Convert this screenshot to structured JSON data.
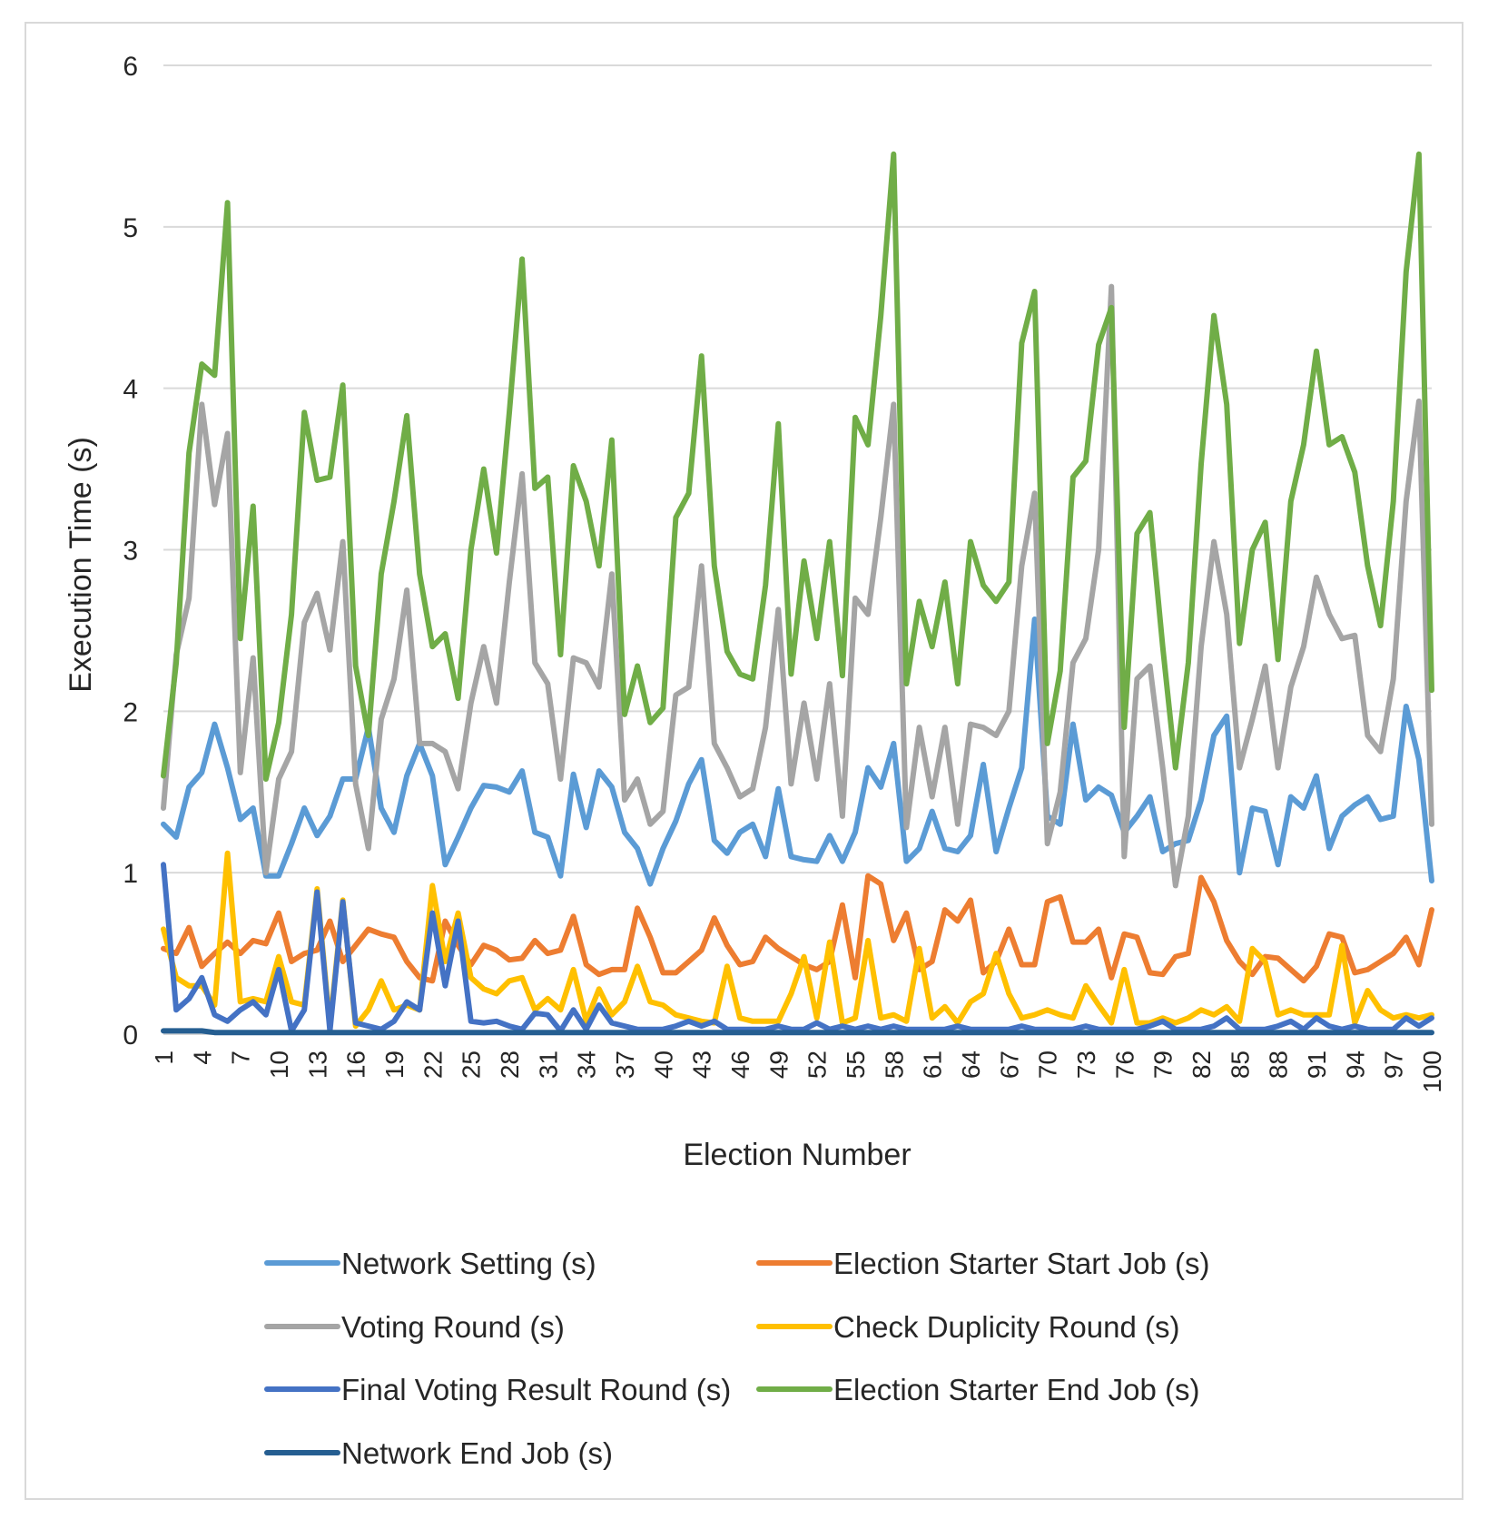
{
  "chart_data": {
    "type": "line",
    "title": "",
    "xlabel": "Election Number",
    "ylabel": "Execution Time (s)",
    "ylim": [
      0,
      6
    ],
    "yticks": [
      0,
      1,
      2,
      3,
      4,
      5,
      6
    ],
    "xtick_labels": [
      "1",
      "4",
      "7",
      "10",
      "13",
      "16",
      "19",
      "22",
      "25",
      "28",
      "31",
      "34",
      "37",
      "40",
      "43",
      "46",
      "49",
      "52",
      "55",
      "58",
      "61",
      "64",
      "67",
      "70",
      "73",
      "76",
      "79",
      "82",
      "85",
      "88",
      "91",
      "94",
      "97",
      "100"
    ],
    "x": [
      1,
      2,
      3,
      4,
      5,
      6,
      7,
      8,
      9,
      10,
      11,
      12,
      13,
      14,
      15,
      16,
      17,
      18,
      19,
      20,
      21,
      22,
      23,
      24,
      25,
      26,
      27,
      28,
      29,
      30,
      31,
      32,
      33,
      34,
      35,
      36,
      37,
      38,
      39,
      40,
      41,
      42,
      43,
      44,
      45,
      46,
      47,
      48,
      49,
      50,
      51,
      52,
      53,
      54,
      55,
      56,
      57,
      58,
      59,
      60,
      61,
      62,
      63,
      64,
      65,
      66,
      67,
      68,
      69,
      70,
      71,
      72,
      73,
      74,
      75,
      76,
      77,
      78,
      79,
      80,
      81,
      82,
      83,
      84,
      85,
      86,
      87,
      88,
      89,
      90,
      91,
      92,
      93,
      94,
      95,
      96,
      97,
      98,
      99,
      100
    ],
    "grid": true,
    "legend_position": "bottom",
    "series": [
      {
        "name": "Network Setting (s)",
        "color": "#5b9bd5",
        "values": [
          1.3,
          1.22,
          1.53,
          1.62,
          1.92,
          1.65,
          1.33,
          1.4,
          0.98,
          0.98,
          1.18,
          1.4,
          1.23,
          1.35,
          1.58,
          1.58,
          1.9,
          1.4,
          1.25,
          1.6,
          1.8,
          1.6,
          1.05,
          1.22,
          1.4,
          1.54,
          1.53,
          1.5,
          1.63,
          1.25,
          1.22,
          0.98,
          1.61,
          1.28,
          1.63,
          1.53,
          1.25,
          1.15,
          0.93,
          1.15,
          1.32,
          1.55,
          1.7,
          1.2,
          1.12,
          1.25,
          1.3,
          1.1,
          1.52,
          1.1,
          1.08,
          1.07,
          1.23,
          1.07,
          1.25,
          1.65,
          1.53,
          1.8,
          1.07,
          1.15,
          1.38,
          1.15,
          1.13,
          1.23,
          1.67,
          1.13,
          1.4,
          1.65,
          2.57,
          1.35,
          1.3,
          1.92,
          1.45,
          1.53,
          1.48,
          1.25,
          1.35,
          1.47,
          1.13,
          1.18,
          1.2,
          1.45,
          1.85,
          1.97,
          1.0,
          1.4,
          1.38,
          1.05,
          1.47,
          1.4,
          1.6,
          1.15,
          1.35,
          1.42,
          1.47,
          1.33,
          1.35,
          2.03,
          1.7,
          0.95
        ]
      },
      {
        "name": "Election Starter Start Job (s)",
        "color": "#ed7d31",
        "values": [
          0.53,
          0.5,
          0.66,
          0.42,
          0.5,
          0.57,
          0.5,
          0.58,
          0.56,
          0.75,
          0.45,
          0.5,
          0.52,
          0.7,
          0.45,
          0.55,
          0.65,
          0.62,
          0.6,
          0.45,
          0.35,
          0.33,
          0.7,
          0.55,
          0.43,
          0.55,
          0.52,
          0.46,
          0.47,
          0.58,
          0.5,
          0.52,
          0.73,
          0.43,
          0.37,
          0.4,
          0.4,
          0.78,
          0.6,
          0.38,
          0.38,
          0.45,
          0.52,
          0.72,
          0.55,
          0.43,
          0.45,
          0.6,
          0.53,
          0.48,
          0.43,
          0.4,
          0.45,
          0.8,
          0.35,
          0.98,
          0.93,
          0.58,
          0.75,
          0.4,
          0.45,
          0.77,
          0.7,
          0.83,
          0.38,
          0.45,
          0.65,
          0.43,
          0.43,
          0.82,
          0.85,
          0.57,
          0.57,
          0.65,
          0.35,
          0.62,
          0.6,
          0.38,
          0.37,
          0.48,
          0.5,
          0.97,
          0.82,
          0.58,
          0.45,
          0.37,
          0.48,
          0.47,
          0.4,
          0.33,
          0.42,
          0.62,
          0.6,
          0.38,
          0.4,
          0.45,
          0.5,
          0.6,
          0.43,
          0.77
        ]
      },
      {
        "name": "Voting Round (s)",
        "color": "#a5a5a5",
        "values": [
          1.4,
          2.35,
          2.7,
          3.9,
          3.28,
          3.72,
          1.62,
          2.33,
          1.0,
          1.58,
          1.75,
          2.55,
          2.73,
          2.38,
          3.05,
          1.55,
          1.15,
          1.95,
          2.2,
          2.75,
          1.8,
          1.8,
          1.75,
          1.52,
          2.05,
          2.4,
          2.05,
          2.8,
          3.47,
          2.3,
          2.17,
          1.58,
          2.33,
          2.3,
          2.15,
          2.85,
          1.45,
          1.58,
          1.3,
          1.38,
          2.1,
          2.15,
          2.9,
          1.8,
          1.65,
          1.47,
          1.52,
          1.9,
          2.63,
          1.55,
          2.05,
          1.58,
          2.17,
          1.35,
          2.7,
          2.6,
          3.2,
          3.9,
          1.28,
          1.9,
          1.47,
          1.9,
          1.3,
          1.92,
          1.9,
          1.85,
          2.0,
          2.9,
          3.35,
          1.18,
          1.5,
          2.3,
          2.45,
          3.0,
          4.63,
          1.1,
          2.2,
          2.28,
          1.65,
          0.92,
          1.35,
          2.4,
          3.05,
          2.6,
          1.65,
          1.95,
          2.28,
          1.65,
          2.15,
          2.4,
          2.83,
          2.6,
          2.45,
          2.47,
          1.85,
          1.75,
          2.2,
          3.3,
          3.92,
          1.3
        ]
      },
      {
        "name": "Check Duplicity Round (s)",
        "color": "#ffc000",
        "values": [
          0.65,
          0.35,
          0.3,
          0.3,
          0.18,
          1.12,
          0.2,
          0.22,
          0.2,
          0.48,
          0.2,
          0.18,
          0.9,
          0.05,
          0.83,
          0.05,
          0.15,
          0.33,
          0.15,
          0.18,
          0.15,
          0.92,
          0.45,
          0.75,
          0.35,
          0.28,
          0.25,
          0.33,
          0.35,
          0.15,
          0.22,
          0.15,
          0.4,
          0.08,
          0.28,
          0.12,
          0.2,
          0.42,
          0.2,
          0.18,
          0.12,
          0.1,
          0.08,
          0.07,
          0.42,
          0.1,
          0.08,
          0.08,
          0.08,
          0.25,
          0.48,
          0.1,
          0.57,
          0.07,
          0.1,
          0.58,
          0.1,
          0.12,
          0.08,
          0.53,
          0.1,
          0.17,
          0.07,
          0.2,
          0.25,
          0.5,
          0.25,
          0.1,
          0.12,
          0.15,
          0.12,
          0.1,
          0.3,
          0.18,
          0.07,
          0.4,
          0.07,
          0.07,
          0.1,
          0.07,
          0.1,
          0.15,
          0.12,
          0.17,
          0.08,
          0.53,
          0.45,
          0.12,
          0.15,
          0.12,
          0.12,
          0.12,
          0.55,
          0.07,
          0.27,
          0.15,
          0.1,
          0.12,
          0.1,
          0.12
        ]
      },
      {
        "name": "Final Voting Result Round (s)",
        "color": "#4472c4",
        "values": [
          1.05,
          0.15,
          0.22,
          0.35,
          0.12,
          0.08,
          0.15,
          0.2,
          0.12,
          0.4,
          0.02,
          0.15,
          0.88,
          0.02,
          0.82,
          0.07,
          0.05,
          0.03,
          0.08,
          0.2,
          0.15,
          0.75,
          0.3,
          0.7,
          0.08,
          0.07,
          0.08,
          0.05,
          0.03,
          0.13,
          0.12,
          0.02,
          0.15,
          0.03,
          0.18,
          0.07,
          0.05,
          0.03,
          0.03,
          0.03,
          0.05,
          0.08,
          0.05,
          0.08,
          0.03,
          0.03,
          0.03,
          0.03,
          0.05,
          0.03,
          0.03,
          0.07,
          0.03,
          0.05,
          0.03,
          0.05,
          0.03,
          0.05,
          0.03,
          0.03,
          0.03,
          0.03,
          0.05,
          0.03,
          0.03,
          0.03,
          0.03,
          0.05,
          0.03,
          0.03,
          0.03,
          0.03,
          0.05,
          0.03,
          0.03,
          0.03,
          0.03,
          0.05,
          0.08,
          0.03,
          0.03,
          0.03,
          0.05,
          0.1,
          0.03,
          0.03,
          0.03,
          0.05,
          0.08,
          0.03,
          0.1,
          0.05,
          0.03,
          0.05,
          0.03,
          0.03,
          0.03,
          0.1,
          0.05,
          0.1
        ]
      },
      {
        "name": "Election Starter End Job (s)",
        "color": "#70ad47",
        "values": [
          1.6,
          2.3,
          3.6,
          4.15,
          4.08,
          5.15,
          2.45,
          3.27,
          1.58,
          1.93,
          2.6,
          3.85,
          3.43,
          3.45,
          4.02,
          2.28,
          1.85,
          2.85,
          3.3,
          3.83,
          2.85,
          2.4,
          2.48,
          2.08,
          3.0,
          3.5,
          2.98,
          3.85,
          4.8,
          3.38,
          3.45,
          2.35,
          3.52,
          3.3,
          2.9,
          3.68,
          1.98,
          2.28,
          1.93,
          2.02,
          3.2,
          3.35,
          4.2,
          2.9,
          2.37,
          2.23,
          2.2,
          2.78,
          3.78,
          2.23,
          2.93,
          2.45,
          3.05,
          2.22,
          3.82,
          3.65,
          4.45,
          5.45,
          2.17,
          2.68,
          2.4,
          2.8,
          2.17,
          3.05,
          2.78,
          2.68,
          2.8,
          4.28,
          4.6,
          1.8,
          2.25,
          3.45,
          3.55,
          4.27,
          4.5,
          1.9,
          3.1,
          3.23,
          2.4,
          1.65,
          2.3,
          3.53,
          4.45,
          3.9,
          2.42,
          3.0,
          3.17,
          2.32,
          3.3,
          3.65,
          4.23,
          3.65,
          3.7,
          3.48,
          2.9,
          2.53,
          3.3,
          4.72,
          5.45,
          2.13
        ]
      },
      {
        "name": "Network End Job (s)",
        "color": "#255e91",
        "values": [
          0.02,
          0.02,
          0.02,
          0.02,
          0.01,
          0.01,
          0.01,
          0.01,
          0.01,
          0.01,
          0.01,
          0.01,
          0.01,
          0.01,
          0.01,
          0.01,
          0.01,
          0.01,
          0.01,
          0.01,
          0.01,
          0.01,
          0.01,
          0.01,
          0.01,
          0.01,
          0.01,
          0.01,
          0.01,
          0.01,
          0.01,
          0.01,
          0.01,
          0.01,
          0.01,
          0.01,
          0.01,
          0.01,
          0.01,
          0.01,
          0.01,
          0.01,
          0.01,
          0.01,
          0.01,
          0.01,
          0.01,
          0.01,
          0.01,
          0.01,
          0.01,
          0.01,
          0.01,
          0.01,
          0.01,
          0.01,
          0.01,
          0.01,
          0.01,
          0.01,
          0.01,
          0.01,
          0.01,
          0.01,
          0.01,
          0.01,
          0.01,
          0.01,
          0.01,
          0.01,
          0.01,
          0.01,
          0.01,
          0.01,
          0.01,
          0.01,
          0.01,
          0.01,
          0.01,
          0.01,
          0.01,
          0.01,
          0.01,
          0.01,
          0.01,
          0.01,
          0.01,
          0.01,
          0.01,
          0.01,
          0.01,
          0.01,
          0.01,
          0.01,
          0.01,
          0.01,
          0.01,
          0.01,
          0.01,
          0.01
        ]
      }
    ]
  }
}
